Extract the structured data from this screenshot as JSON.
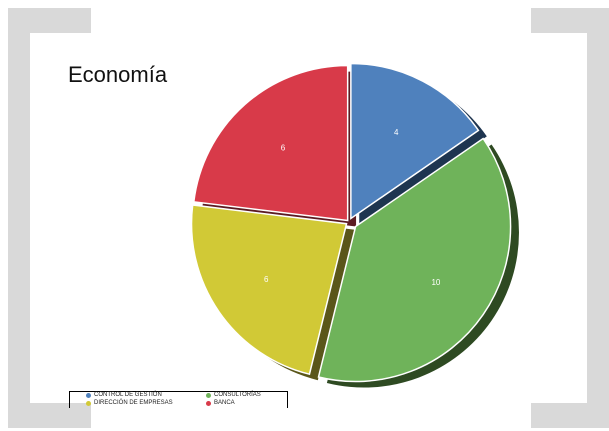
{
  "slide": {
    "title": "Economía"
  },
  "chart_data": {
    "type": "pie",
    "title": "Economía",
    "categories": [
      "CONTROL DE GESTIÓN",
      "CONSULTORÍAS",
      "DIRECCIÓN DE EMPRESAS",
      "BANCA"
    ],
    "values": [
      4,
      10,
      6,
      6
    ],
    "colors": [
      "#4f81bd",
      "#6fb35a",
      "#d1c936",
      "#d83a49"
    ],
    "shadow_colors": [
      "#1e3550",
      "#2e4a22",
      "#5a561a",
      "#5c1b22"
    ],
    "data_labels": [
      "4",
      "10",
      "6",
      "6"
    ],
    "legend_position": "bottom-left",
    "style": "3d-exploded"
  }
}
